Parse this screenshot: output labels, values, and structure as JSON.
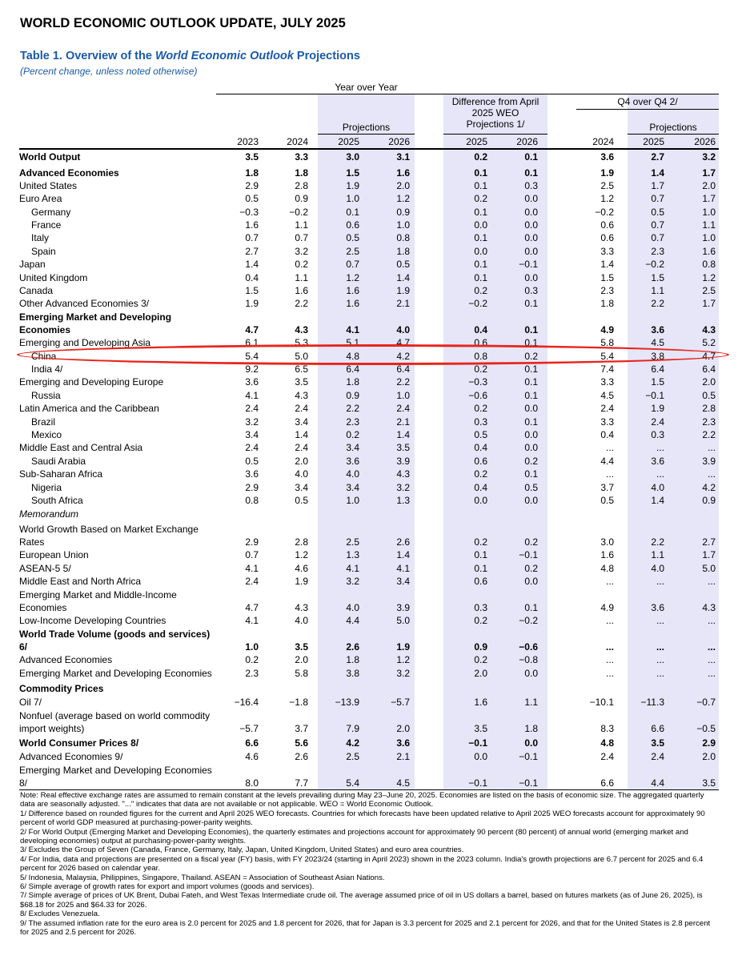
{
  "header": "WORLD ECONOMIC OUTLOOK UPDATE, JULY 2025",
  "table_title": {
    "prefix": "Table 1. Overview of the ",
    "italic": "World Economic Outlook",
    "suffix": " Projections"
  },
  "subtitle": "(Percent change, unless noted otherwise)",
  "group_headers": {
    "yoy": "Year over Year",
    "diff": [
      "Difference from April",
      "2025 WEO",
      "Projections 1/"
    ],
    "q4": "Q4 over Q4 2/",
    "proj": "Projections",
    "proj_q4": "Projections"
  },
  "columns": [
    "2023",
    "2024",
    "2025",
    "2026",
    "2025",
    "2026",
    "2024",
    "2025",
    "2026"
  ],
  "rows": [
    {
      "label": "World Output",
      "bold": true,
      "values": [
        "3.5",
        "3.3",
        "3.0",
        "3.1",
        "0.2",
        "0.1",
        "3.6",
        "2.7",
        "3.2"
      ]
    },
    {
      "label": "Advanced Economies",
      "bold": true,
      "values": [
        "1.8",
        "1.8",
        "1.5",
        "1.6",
        "0.1",
        "0.1",
        "1.9",
        "1.4",
        "1.7"
      ]
    },
    {
      "label": "United States",
      "values": [
        "2.9",
        "2.8",
        "1.9",
        "2.0",
        "0.1",
        "0.3",
        "2.5",
        "1.7",
        "2.0"
      ]
    },
    {
      "label": "Euro Area",
      "values": [
        "0.5",
        "0.9",
        "1.0",
        "1.2",
        "0.2",
        "0.0",
        "1.2",
        "0.7",
        "1.7"
      ]
    },
    {
      "label": "Germany",
      "indent": 1,
      "values": [
        "−0.3",
        "−0.2",
        "0.1",
        "0.9",
        "0.1",
        "0.0",
        "−0.2",
        "0.5",
        "1.0"
      ]
    },
    {
      "label": "France",
      "indent": 1,
      "values": [
        "1.6",
        "1.1",
        "0.6",
        "1.0",
        "0.0",
        "0.0",
        "0.6",
        "0.7",
        "1.1"
      ]
    },
    {
      "label": "Italy",
      "indent": 1,
      "values": [
        "0.7",
        "0.7",
        "0.5",
        "0.8",
        "0.1",
        "0.0",
        "0.6",
        "0.7",
        "1.0"
      ]
    },
    {
      "label": "Spain",
      "indent": 1,
      "values": [
        "2.7",
        "3.2",
        "2.5",
        "1.8",
        "0.0",
        "0.0",
        "3.3",
        "2.3",
        "1.6"
      ]
    },
    {
      "label": "Japan",
      "values": [
        "1.4",
        "0.2",
        "0.7",
        "0.5",
        "0.1",
        "−0.1",
        "1.4",
        "−0.2",
        "0.8"
      ]
    },
    {
      "label": "United Kingdom",
      "values": [
        "0.4",
        "1.1",
        "1.2",
        "1.4",
        "0.1",
        "0.0",
        "1.5",
        "1.5",
        "1.2"
      ]
    },
    {
      "label": "Canada",
      "values": [
        "1.5",
        "1.6",
        "1.6",
        "1.9",
        "0.2",
        "0.3",
        "2.3",
        "1.1",
        "2.5"
      ]
    },
    {
      "label": "Other Advanced Economies 3/",
      "values": [
        "1.9",
        "2.2",
        "1.6",
        "2.1",
        "−0.2",
        "0.1",
        "1.8",
        "2.2",
        "1.7"
      ]
    },
    {
      "label": "Emerging Market and Developing",
      "bold": true,
      "values": [
        "",
        "",
        "",
        "",
        "",
        "",
        "",
        "",
        ""
      ]
    },
    {
      "label": "Economies",
      "bold": true,
      "values": [
        "4.7",
        "4.3",
        "4.1",
        "4.0",
        "0.4",
        "0.1",
        "4.9",
        "3.6",
        "4.3"
      ]
    },
    {
      "label": "Emerging and Developing Asia",
      "values": [
        "6.1",
        "5.3",
        "5.1",
        "4.7",
        "0.6",
        "0.1",
        "5.8",
        "4.5",
        "5.2"
      ]
    },
    {
      "label": "China",
      "indent": 1,
      "values": [
        "5.4",
        "5.0",
        "4.8",
        "4.2",
        "0.8",
        "0.2",
        "5.4",
        "3.8",
        "4.7"
      ]
    },
    {
      "label": "India 4/",
      "indent": 1,
      "values": [
        "9.2",
        "6.5",
        "6.4",
        "6.4",
        "0.2",
        "0.1",
        "7.4",
        "6.4",
        "6.4"
      ]
    },
    {
      "label": "Emerging and Developing Europe",
      "values": [
        "3.6",
        "3.5",
        "1.8",
        "2.2",
        "−0.3",
        "0.1",
        "3.3",
        "1.5",
        "2.0"
      ]
    },
    {
      "label": "Russia",
      "indent": 1,
      "values": [
        "4.1",
        "4.3",
        "0.9",
        "1.0",
        "−0.6",
        "0.1",
        "4.5",
        "−0.1",
        "0.5"
      ]
    },
    {
      "label": "Latin America and the Caribbean",
      "values": [
        "2.4",
        "2.4",
        "2.2",
        "2.4",
        "0.2",
        "0.0",
        "2.4",
        "1.9",
        "2.8"
      ]
    },
    {
      "label": "Brazil",
      "indent": 1,
      "values": [
        "3.2",
        "3.4",
        "2.3",
        "2.1",
        "0.3",
        "0.1",
        "3.3",
        "2.4",
        "2.3"
      ]
    },
    {
      "label": "Mexico",
      "indent": 1,
      "values": [
        "3.4",
        "1.4",
        "0.2",
        "1.4",
        "0.5",
        "0.0",
        "0.4",
        "0.3",
        "2.2"
      ]
    },
    {
      "label": "Middle East and Central Asia",
      "values": [
        "2.4",
        "2.4",
        "3.4",
        "3.5",
        "0.4",
        "0.0",
        "...",
        "...",
        "..."
      ]
    },
    {
      "label": "Saudi Arabia",
      "indent": 1,
      "values": [
        "0.5",
        "2.0",
        "3.6",
        "3.9",
        "0.6",
        "0.2",
        "4.4",
        "3.6",
        "3.9"
      ]
    },
    {
      "label": "Sub-Saharan Africa",
      "values": [
        "3.6",
        "4.0",
        "4.0",
        "4.3",
        "0.2",
        "0.1",
        "...",
        "...",
        "..."
      ]
    },
    {
      "label": "Nigeria",
      "indent": 1,
      "values": [
        "2.9",
        "3.4",
        "3.4",
        "3.2",
        "0.4",
        "0.5",
        "3.7",
        "4.0",
        "4.2"
      ]
    },
    {
      "label": "South Africa",
      "indent": 1,
      "values": [
        "0.8",
        "0.5",
        "1.0",
        "1.3",
        "0.0",
        "0.0",
        "0.5",
        "1.4",
        "0.9"
      ]
    },
    {
      "label": "Memorandum",
      "italic": true,
      "values": [
        "",
        "",
        "",
        "",
        "",
        "",
        "",
        "",
        ""
      ]
    },
    {
      "label": "World Growth Based on Market Exchange",
      "values": [
        "",
        "",
        "",
        "",
        "",
        "",
        "",
        "",
        ""
      ]
    },
    {
      "label": "Rates",
      "values": [
        "2.9",
        "2.8",
        "2.5",
        "2.6",
        "0.2",
        "0.2",
        "3.0",
        "2.2",
        "2.7"
      ]
    },
    {
      "label": "European Union",
      "values": [
        "0.7",
        "1.2",
        "1.3",
        "1.4",
        "0.1",
        "−0.1",
        "1.6",
        "1.1",
        "1.7"
      ]
    },
    {
      "label": "ASEAN-5 5/",
      "values": [
        "4.1",
        "4.6",
        "4.1",
        "4.1",
        "0.1",
        "0.2",
        "4.8",
        "4.0",
        "5.0"
      ]
    },
    {
      "label": "Middle East and North Africa",
      "values": [
        "2.4",
        "1.9",
        "3.2",
        "3.4",
        "0.6",
        "0.0",
        "...",
        "...",
        "..."
      ]
    },
    {
      "label": "Emerging Market and Middle-Income",
      "values": [
        "",
        "",
        "",
        "",
        "",
        "",
        "",
        "",
        ""
      ]
    },
    {
      "label": "Economies",
      "values": [
        "4.7",
        "4.3",
        "4.0",
        "3.9",
        "0.3",
        "0.1",
        "4.9",
        "3.6",
        "4.3"
      ]
    },
    {
      "label": "Low-Income Developing Countries",
      "values": [
        "4.1",
        "4.0",
        "4.4",
        "5.0",
        "0.2",
        "−0.2",
        "...",
        "...",
        "..."
      ]
    },
    {
      "label": "World Trade Volume (goods and services)",
      "bold": true,
      "values": [
        "",
        "",
        "",
        "",
        "",
        "",
        "",
        "",
        ""
      ]
    },
    {
      "label": "6/",
      "bold": true,
      "values": [
        "1.0",
        "3.5",
        "2.6",
        "1.9",
        "0.9",
        "−0.6",
        "...",
        "...",
        "..."
      ]
    },
    {
      "label": "Advanced Economies",
      "values": [
        "0.2",
        "2.0",
        "1.8",
        "1.2",
        "0.2",
        "−0.8",
        "...",
        "...",
        "..."
      ]
    },
    {
      "label": "Emerging Market and Developing Economies",
      "values": [
        "2.3",
        "5.8",
        "3.8",
        "3.2",
        "2.0",
        "0.0",
        "...",
        "...",
        "..."
      ]
    },
    {
      "label": "Commodity Prices",
      "bold": true,
      "values": [
        "",
        "",
        "",
        "",
        "",
        "",
        "",
        "",
        ""
      ]
    },
    {
      "label": "Oil 7/",
      "values": [
        "−16.4",
        "−1.8",
        "−13.9",
        "−5.7",
        "1.6",
        "1.1",
        "−10.1",
        "−11.3",
        "−0.7"
      ]
    },
    {
      "label": "Nonfuel (average based on world commodity",
      "values": [
        "",
        "",
        "",
        "",
        "",
        "",
        "",
        "",
        ""
      ]
    },
    {
      "label": "import weights)",
      "values": [
        "−5.7",
        "3.7",
        "7.9",
        "2.0",
        "3.5",
        "1.8",
        "8.3",
        "6.6",
        "−0.5"
      ]
    },
    {
      "label": "World Consumer Prices 8/",
      "bold": true,
      "values": [
        "6.6",
        "5.6",
        "4.2",
        "3.6",
        "−0.1",
        "0.0",
        "4.8",
        "3.5",
        "2.9"
      ]
    },
    {
      "label": "Advanced Economies 9/",
      "values": [
        "4.6",
        "2.6",
        "2.5",
        "2.1",
        "0.0",
        "−0.1",
        "2.4",
        "2.4",
        "2.0"
      ]
    },
    {
      "label": "Emerging Market and Developing Economies",
      "values": [
        "",
        "",
        "",
        "",
        "",
        "",
        "",
        "",
        ""
      ]
    },
    {
      "label": "8/",
      "values": [
        "8.0",
        "7.7",
        "5.4",
        "4.5",
        "−0.1",
        "−0.1",
        "6.6",
        "4.4",
        "3.5"
      ]
    }
  ],
  "notes": [
    "Note: Real effective exchange rates are assumed to remain constant at the levels prevailing during May 23–June 20, 2025. Economies are listed on the basis of economic size. The aggregated quarterly data are seasonally adjusted. \"...\" indicates that data are not available or not applicable. WEO = World Economic Outlook.",
    "1/ Difference based on rounded figures for the current and April 2025 WEO forecasts. Countries for which forecasts have been updated relative to April 2025 WEO forecasts account for approximately 90 percent of world GDP measured at purchasing-power-parity weights.",
    "2/ For World Output (Emerging Market and Developing Economies), the quarterly estimates and projections account for approximately 90 percent (80 percent) of annual world (emerging market and developing economies) output at purchasing-power-parity weights.",
    "3/ Excludes the Group of Seven (Canada, France, Germany, Italy, Japan, United Kingdom, United States) and euro area countries.",
    "4/ For India, data and projections are presented on a fiscal year (FY) basis, with FY 2023/24 (starting in April 2023) shown in the 2023 column. India's growth projections are 6.7 percent for 2025 and 6.4 percent for 2026 based on calendar year.",
    "5/ Indonesia, Malaysia, Philippines, Singapore, Thailand. ASEAN = Association of Southeast Asian Nations.",
    "6/ Simple average of growth rates for export and import volumes (goods and services).",
    "7/ Simple average of prices of UK Brent, Dubai Fateh, and West Texas Intermediate crude oil. The average assumed price of oil in US dollars a barrel, based on futures markets (as of June 26, 2025), is $68.18 for 2025 and $64.33 for 2026.",
    "8/ Excludes Venezuela.",
    "9/ The assumed inflation rate for the euro area is 2.0 percent for 2025 and 1.8 percent for 2026, that for Japan is 3.3 percent for 2025 and 2.1 percent for 2026, and that for the United States is 2.8 percent for 2025 and 2.5 percent for 2026."
  ]
}
